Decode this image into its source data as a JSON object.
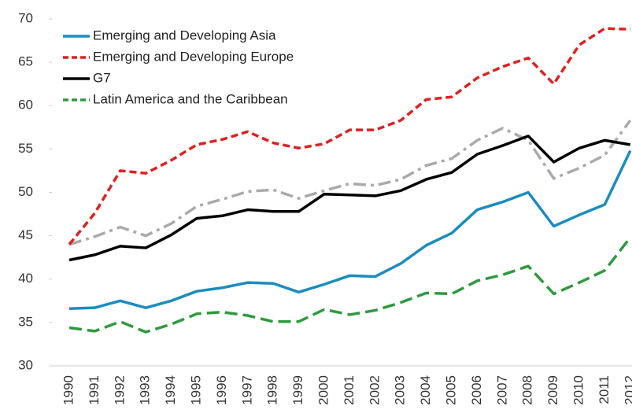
{
  "chart_data": {
    "type": "line",
    "categories": [
      "1990",
      "1991",
      "1992",
      "1993",
      "1994",
      "1995",
      "1996",
      "1997",
      "1998",
      "1999",
      "2000",
      "2001",
      "2002",
      "2003",
      "2004",
      "2005",
      "2006",
      "2007",
      "2008",
      "2009",
      "2010",
      "2011",
      "2012"
    ],
    "series": [
      {
        "name": "Emerging and Developing Asia",
        "color": "#1b8cc0",
        "dash": "solid",
        "values": [
          36.6,
          36.7,
          37.5,
          36.7,
          37.5,
          38.6,
          39.0,
          39.6,
          39.5,
          38.5,
          39.4,
          40.4,
          40.3,
          41.8,
          43.9,
          45.3,
          48.0,
          48.9,
          50.0,
          46.1,
          47.4,
          48.6,
          54.8
        ]
      },
      {
        "name": "Emerging and Developing Europe",
        "color": "#e02020",
        "dash": "dash",
        "values": [
          44.0,
          47.6,
          52.5,
          52.2,
          53.7,
          55.5,
          56.1,
          57.0,
          55.7,
          55.1,
          55.6,
          57.2,
          57.2,
          58.3,
          60.7,
          61.0,
          63.2,
          64.5,
          65.5,
          62.5,
          67.0,
          68.9,
          68.8
        ]
      },
      {
        "name": "G7",
        "color": "#000000",
        "dash": "solid",
        "values": [
          42.2,
          42.8,
          43.8,
          43.6,
          45.1,
          47.0,
          47.3,
          48.0,
          47.8,
          47.8,
          49.8,
          49.7,
          49.6,
          50.2,
          51.5,
          52.3,
          54.4,
          55.4,
          56.5,
          53.5,
          55.1,
          56.0,
          55.5
        ]
      },
      {
        "name": "Latin America and the Caribbean",
        "color": "#2e9a3e",
        "dash": "longdash",
        "values": [
          34.4,
          34.0,
          35.1,
          33.9,
          34.8,
          36.0,
          36.2,
          35.8,
          35.1,
          35.1,
          36.5,
          35.9,
          36.4,
          37.3,
          38.4,
          38.3,
          39.8,
          40.5,
          41.5,
          38.3,
          39.6,
          41.0,
          44.8
        ]
      },
      {
        "color": "#aaaaaa",
        "dash": "dashdot",
        "values": [
          44.0,
          44.9,
          46.0,
          45.0,
          46.4,
          48.4,
          49.2,
          50.1,
          50.3,
          49.3,
          50.2,
          51.0,
          50.8,
          51.5,
          53.1,
          53.9,
          56.0,
          57.4,
          56.0,
          51.6,
          52.8,
          54.3,
          58.3
        ]
      }
    ],
    "ylim": [
      30,
      70
    ],
    "yticks": [
      30,
      35,
      40,
      45,
      50,
      55,
      60,
      65,
      70
    ],
    "legend": "top-left"
  }
}
